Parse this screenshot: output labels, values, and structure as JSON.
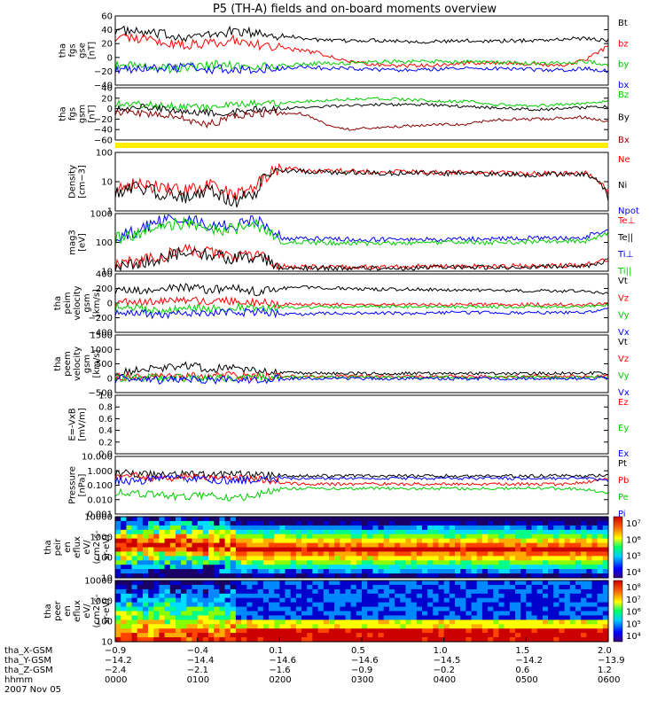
{
  "title": "P5 (TH-A) fields and on-board moments overview",
  "chart_data": [
    {
      "id": "fgs",
      "type": "line",
      "ylabel": [
        "tha",
        "fgs",
        "gse",
        "[nT]"
      ],
      "ticks": [
        "60",
        "40",
        "20",
        "0",
        "−20",
        "−40"
      ],
      "ylim": [
        -40,
        60
      ],
      "series": [
        {
          "name": "Bt",
          "color": "#000000",
          "values": [
            40,
            36,
            33,
            30,
            32,
            38,
            35,
            32,
            28,
            24,
            24,
            25,
            24,
            23,
            23,
            24,
            24,
            24,
            25,
            26,
            28,
            24
          ]
        },
        {
          "name": "bz",
          "color": "#ff0000",
          "values": [
            30,
            28,
            22,
            18,
            20,
            26,
            18,
            14,
            10,
            4,
            -6,
            -10,
            -12,
            -12,
            -10,
            -8,
            -8,
            -8,
            -10,
            -12,
            -4,
            16
          ]
        },
        {
          "name": "by",
          "color": "#00cc00",
          "values": [
            -12,
            -14,
            -16,
            -14,
            -12,
            -10,
            -14,
            -12,
            -10,
            -8,
            -8,
            -6,
            -6,
            -6,
            -6,
            -6,
            -7,
            -8,
            -8,
            -8,
            -6,
            -10
          ]
        },
        {
          "name": "bx",
          "color": "#0000ff",
          "values": [
            -16,
            -18,
            -16,
            -14,
            -16,
            -18,
            -16,
            -16,
            -14,
            -16,
            -16,
            -18,
            -18,
            -18,
            -16,
            -16,
            -16,
            -16,
            -18,
            -18,
            -16,
            -20
          ]
        }
      ]
    },
    {
      "id": "fgs_gsm",
      "type": "line",
      "ylabel": [
        "tha",
        "fgs",
        "gsm",
        "[nT]"
      ],
      "ticks": [
        "40",
        "20",
        "0",
        "−20",
        "−40",
        "−60"
      ],
      "ylim": [
        -60,
        40
      ],
      "series": [
        {
          "name": "Bz",
          "color": "#00cc00",
          "values": [
            10,
            8,
            6,
            4,
            2,
            6,
            10,
            12,
            14,
            16,
            18,
            20,
            18,
            16,
            14,
            14,
            8,
            6,
            6,
            8,
            10,
            14
          ]
        },
        {
          "name": "By",
          "color": "#000000",
          "values": [
            2,
            2,
            0,
            -4,
            -8,
            -6,
            -2,
            0,
            2,
            4,
            6,
            8,
            8,
            8,
            6,
            4,
            2,
            0,
            -2,
            0,
            2,
            4
          ]
        },
        {
          "name": "Bx",
          "color": "#8b0000",
          "values": [
            -6,
            -8,
            -12,
            -20,
            -30,
            -16,
            -10,
            -8,
            -10,
            -30,
            -40,
            -36,
            -34,
            -32,
            -30,
            -30,
            -22,
            -20,
            -20,
            -18,
            -16,
            -26
          ]
        }
      ]
    },
    {
      "id": "density",
      "type": "line",
      "ylabel": [
        "Density",
        "[cm−3]"
      ],
      "ticks": [
        "100",
        "10",
        "1"
      ],
      "ylim": [
        1,
        200
      ],
      "log": true,
      "series": [
        {
          "name": "Ne",
          "color": "#ff0000",
          "values": [
            10,
            12,
            8,
            6,
            10,
            4,
            8,
            45,
            40,
            38,
            36,
            35,
            34,
            34,
            33,
            32,
            32,
            30,
            28,
            30,
            30,
            4
          ]
        },
        {
          "name": "Ni",
          "color": "#000000",
          "values": [
            6,
            8,
            5,
            3,
            6,
            2,
            5,
            40,
            36,
            34,
            33,
            32,
            31,
            31,
            30,
            30,
            29,
            28,
            26,
            28,
            28,
            3
          ]
        },
        {
          "name": "Npot",
          "color": "#0000ff",
          "values": []
        }
      ]
    },
    {
      "id": "temp",
      "type": "line",
      "ylabel": [
        "mag3",
        "[eV]"
      ],
      "ticks": [
        "1000",
        "100",
        "10"
      ],
      "ylim": [
        10,
        3000
      ],
      "log": true,
      "series": [
        {
          "name": "Te⊥",
          "color": "#ff0000",
          "values": [
            20,
            25,
            40,
            80,
            60,
            40,
            50,
            16,
            15,
            15,
            15,
            15,
            15,
            16,
            16,
            16,
            16,
            17,
            17,
            17,
            18,
            30
          ]
        },
        {
          "name": "Te||",
          "color": "#000000",
          "values": [
            18,
            22,
            35,
            70,
            50,
            35,
            45,
            14,
            14,
            14,
            14,
            14,
            14,
            14,
            15,
            15,
            15,
            15,
            16,
            16,
            16,
            28
          ]
        },
        {
          "name": "Ti⊥",
          "color": "#0000ff",
          "values": [
            300,
            500,
            1500,
            2000,
            1000,
            800,
            1500,
            260,
            250,
            240,
            230,
            230,
            230,
            230,
            240,
            240,
            250,
            250,
            260,
            260,
            270,
            600
          ]
        },
        {
          "name": "Ti||",
          "color": "#00cc00",
          "values": [
            250,
            400,
            900,
            1200,
            700,
            600,
            900,
            180,
            170,
            170,
            160,
            160,
            160,
            160,
            170,
            170,
            170,
            180,
            180,
            190,
            200,
            400
          ]
        }
      ]
    },
    {
      "id": "peim",
      "type": "line",
      "ylabel": [
        "tha",
        "peim",
        "velocity",
        "gsm",
        "[km/s]"
      ],
      "ticks": [
        "400",
        "200",
        "0",
        "−200",
        "−400"
      ],
      "ylim": [
        -400,
        400
      ],
      "series": [
        {
          "name": "Vt",
          "color": "#000000",
          "values": [
            180,
            160,
            190,
            220,
            180,
            200,
            160,
            200,
            220,
            210,
            200,
            190,
            190,
            190,
            180,
            180,
            175,
            170,
            170,
            165,
            160,
            140
          ]
        },
        {
          "name": "Vz",
          "color": "#ff0000",
          "values": [
            20,
            10,
            30,
            40,
            20,
            30,
            10,
            -20,
            -20,
            -20,
            -22,
            -20,
            -20,
            -22,
            -22,
            -20,
            -18,
            -18,
            -20,
            -20,
            -20,
            -10
          ]
        },
        {
          "name": "Vy",
          "color": "#00cc00",
          "values": [
            -60,
            -80,
            -100,
            -60,
            -80,
            -60,
            -60,
            -60,
            -60,
            -50,
            -50,
            -50,
            -50,
            -50,
            -50,
            -50,
            -50,
            -50,
            -50,
            -50,
            -50,
            -30
          ]
        },
        {
          "name": "Vx",
          "color": "#0000ff",
          "values": [
            -120,
            -140,
            -160,
            -120,
            -150,
            -130,
            -120,
            -150,
            -150,
            -140,
            -140,
            -130,
            -140,
            -140,
            -130,
            -130,
            -130,
            -130,
            -130,
            -130,
            -130,
            -80
          ]
        }
      ]
    },
    {
      "id": "peem",
      "type": "line",
      "ylabel": [
        "tha",
        "peem",
        "velocity",
        "gsm",
        "[km/s]"
      ],
      "ticks": [
        "1500",
        "1000",
        "500",
        "0",
        "−500"
      ],
      "ylim": [
        -600,
        1500
      ],
      "series": [
        {
          "name": "Vt",
          "color": "#000000",
          "values": [
            150,
            200,
            300,
            400,
            250,
            350,
            200,
            120,
            110,
            100,
            100,
            100,
            100,
            100,
            100,
            100,
            100,
            100,
            100,
            100,
            100,
            120
          ]
        },
        {
          "name": "Vz",
          "color": "#ff0000",
          "values": [
            0,
            -20,
            20,
            0,
            -30,
            10,
            0,
            -10,
            -10,
            -10,
            -10,
            -10,
            -10,
            -10,
            -10,
            -10,
            -10,
            -10,
            -10,
            -10,
            -10,
            0
          ]
        },
        {
          "name": "Vy",
          "color": "#00cc00",
          "values": [
            -40,
            -60,
            -80,
            -60,
            -70,
            -50,
            -60,
            -40,
            -40,
            -40,
            -40,
            -40,
            -40,
            -40,
            -40,
            -40,
            -40,
            -40,
            -40,
            -40,
            -40,
            -30
          ]
        },
        {
          "name": "Vx",
          "color": "#0000ff",
          "values": [
            -100,
            -120,
            -150,
            -100,
            -140,
            -110,
            -120,
            -90,
            -90,
            -90,
            -90,
            -90,
            -90,
            -90,
            -90,
            -90,
            -90,
            -90,
            -90,
            -90,
            -90,
            -60
          ]
        }
      ]
    },
    {
      "id": "efield",
      "type": "line",
      "ylabel": [
        "E=-VxB",
        "[mV/m]"
      ],
      "ticks": [
        "1.0",
        "0.8",
        "0.6",
        "0.4",
        "0.2",
        "0.0"
      ],
      "ylim": [
        0,
        1
      ],
      "series": [
        {
          "name": "Ez",
          "color": "#ff0000",
          "values": []
        },
        {
          "name": "Ey",
          "color": "#00cc00",
          "values": []
        },
        {
          "name": "Ex",
          "color": "#0000ff",
          "values": []
        }
      ]
    },
    {
      "id": "pressure",
      "type": "line",
      "ylabel": [
        "Pressure",
        "[nPa]"
      ],
      "ticks": [
        "10.000",
        "1.000",
        "0.100",
        "0.010",
        "0.001"
      ],
      "ylim": [
        0.001,
        10
      ],
      "log": true,
      "series": [
        {
          "name": "Pt",
          "color": "#000000",
          "values": [
            0.7,
            0.6,
            0.5,
            0.6,
            0.5,
            0.6,
            0.5,
            0.45,
            0.45,
            0.45,
            0.45,
            0.45,
            0.45,
            0.45,
            0.45,
            0.45,
            0.45,
            0.45,
            0.45,
            0.45,
            0.45,
            0.5
          ]
        },
        {
          "name": "Pb",
          "color": "#ff0000",
          "values": [
            0.5,
            0.4,
            0.3,
            0.35,
            0.3,
            0.3,
            0.3,
            0.15,
            0.12,
            0.12,
            0.12,
            0.12,
            0.12,
            0.12,
            0.12,
            0.12,
            0.12,
            0.12,
            0.12,
            0.12,
            0.15,
            0.3
          ]
        },
        {
          "name": "Pe",
          "color": "#00cc00",
          "values": [
            0.03,
            0.025,
            0.02,
            0.015,
            0.02,
            0.01,
            0.02,
            0.06,
            0.06,
            0.06,
            0.06,
            0.06,
            0.06,
            0.06,
            0.06,
            0.06,
            0.06,
            0.06,
            0.06,
            0.06,
            0.05,
            0.03
          ]
        },
        {
          "name": "Pi",
          "color": "#0000ff",
          "values": [
            0.2,
            0.2,
            0.3,
            0.3,
            0.25,
            0.2,
            0.25,
            0.3,
            0.3,
            0.3,
            0.3,
            0.3,
            0.3,
            0.3,
            0.3,
            0.3,
            0.3,
            0.3,
            0.3,
            0.3,
            0.3,
            0.2
          ]
        }
      ]
    },
    {
      "id": "peir",
      "type": "heatmap",
      "ylabel": [
        "tha",
        "peir",
        "en",
        "eflux",
        "eV/",
        "(cm2-s-",
        "sr-eV)"
      ],
      "ticks": [
        "10000",
        "1000",
        "100",
        "10"
      ],
      "colorbar_ticks": [
        "10⁷",
        "10⁶",
        "10⁵",
        "10⁴"
      ]
    },
    {
      "id": "peer",
      "type": "heatmap",
      "ylabel": [
        "tha",
        "peer",
        "en",
        "eflux",
        "eV/",
        "(cm2-s-",
        "sr-eV)"
      ],
      "ticks": [
        "10000",
        "1000",
        "100",
        "10"
      ],
      "colorbar_ticks": [
        "10⁸",
        "10⁷",
        "10⁶",
        "10⁵",
        "10⁴"
      ]
    }
  ],
  "xaxis": {
    "row_labels": [
      "tha_X-GSM",
      "tha_Y-GSM",
      "tha_Z-GSM",
      "hhmm",
      "2007 Nov 05"
    ],
    "columns": [
      [
        "−0.9",
        "−14.2",
        "−2.4",
        "0000"
      ],
      [
        "−0.4",
        "−14.4",
        "−2.1",
        "0100"
      ],
      [
        "0.1",
        "−14.6",
        "−1.6",
        "0200"
      ],
      [
        "0.5",
        "−14.6",
        "−0.9",
        "0300"
      ],
      [
        "1.0",
        "−14.5",
        "−0.2",
        "0400"
      ],
      [
        "1.5",
        "−14.2",
        "0.6",
        "0500"
      ],
      [
        "2.0",
        "−13.9",
        "1.2",
        "0600"
      ]
    ]
  },
  "colors": {
    "flag_bar": "#ffee00"
  }
}
